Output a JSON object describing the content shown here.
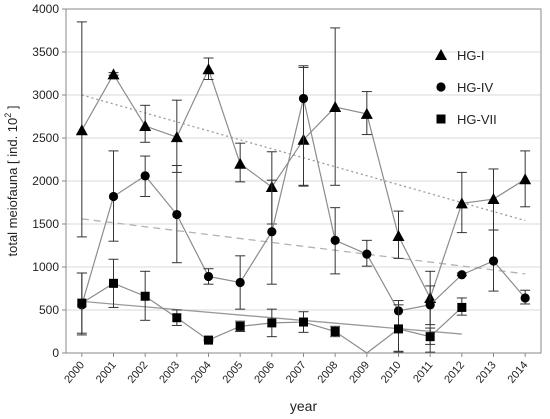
{
  "chart_data": {
    "type": "line",
    "xlabel": "year",
    "ylabel": "total meiofauna  [ ind. 10",
    "ylabel_sup": "2",
    "ylabel_end": " ]",
    "x": [
      2000,
      2001,
      2002,
      2003,
      2004,
      2005,
      2006,
      2007,
      2008,
      2009,
      2010,
      2011,
      2012,
      2013,
      2014
    ],
    "xticks": [
      "2000",
      "2001",
      "2002",
      "2003",
      "2004",
      "2005",
      "2006",
      "2007",
      "2008",
      "2009",
      "2010",
      "2011",
      "2012",
      "2013",
      "2014"
    ],
    "ylim": [
      0,
      4000
    ],
    "yticks": [
      0,
      500,
      1000,
      1500,
      2000,
      2500,
      3000,
      3500,
      4000
    ],
    "ytick_labels": [
      "0",
      "500",
      "1000",
      "1500",
      "2000",
      "2500",
      "3000",
      "3500",
      "4000"
    ],
    "grid": "horizontal",
    "legend_position": "right",
    "series": [
      {
        "name": "HG-I",
        "marker": "triangle",
        "values": [
          2590,
          3240,
          2640,
          2510,
          3300,
          2200,
          1930,
          2480,
          2860,
          2780,
          1360,
          640,
          1740,
          1790,
          2020
        ],
        "err_low": [
          1350,
          3230,
          2450,
          2100,
          3180,
          1990,
          1500,
          1940,
          1950,
          2540,
          1100,
          330,
          1400,
          1430,
          1700
        ],
        "err_high": [
          3850,
          3260,
          2880,
          2940,
          3430,
          2440,
          2340,
          3340,
          3780,
          3040,
          1650,
          950,
          2100,
          2140,
          2350
        ],
        "trend": [
          3000,
          1540
        ],
        "trend_style": "dotted"
      },
      {
        "name": "HG-IV",
        "marker": "circle",
        "values": [
          560,
          1820,
          2060,
          1610,
          890,
          820,
          1410,
          2960,
          1310,
          1150,
          490,
          560,
          910,
          1070,
          640
        ],
        "err_low": [
          210,
          1300,
          1820,
          1050,
          800,
          510,
          800,
          1950,
          920,
          1010,
          20,
          10,
          900,
          720,
          570
        ],
        "err_high": [
          930,
          2350,
          2290,
          2180,
          980,
          1130,
          2010,
          3320,
          1690,
          1310,
          610,
          780,
          930,
          1430,
          730
        ],
        "trend": [
          1560,
          920
        ],
        "trend_style": "dashed"
      },
      {
        "name": "HG-VII",
        "marker": "square",
        "values": [
          580,
          810,
          660,
          410,
          150,
          310,
          350,
          360,
          250,
          0,
          280,
          190,
          530
        ],
        "x": [
          2000,
          2001,
          2002,
          2003,
          2004,
          2005,
          2006,
          2007,
          2008,
          2009,
          2010,
          2011,
          2012
        ],
        "err_low": [
          230,
          530,
          380,
          320,
          140,
          250,
          190,
          240,
          190,
          0,
          10,
          100,
          440
        ],
        "err_high": [
          930,
          1090,
          950,
          500,
          160,
          370,
          510,
          480,
          310,
          0,
          560,
          290,
          640
        ],
        "trend": [
          600,
          220
        ],
        "trend_x": [
          2000,
          2012
        ],
        "trend_style": "solid"
      }
    ]
  }
}
